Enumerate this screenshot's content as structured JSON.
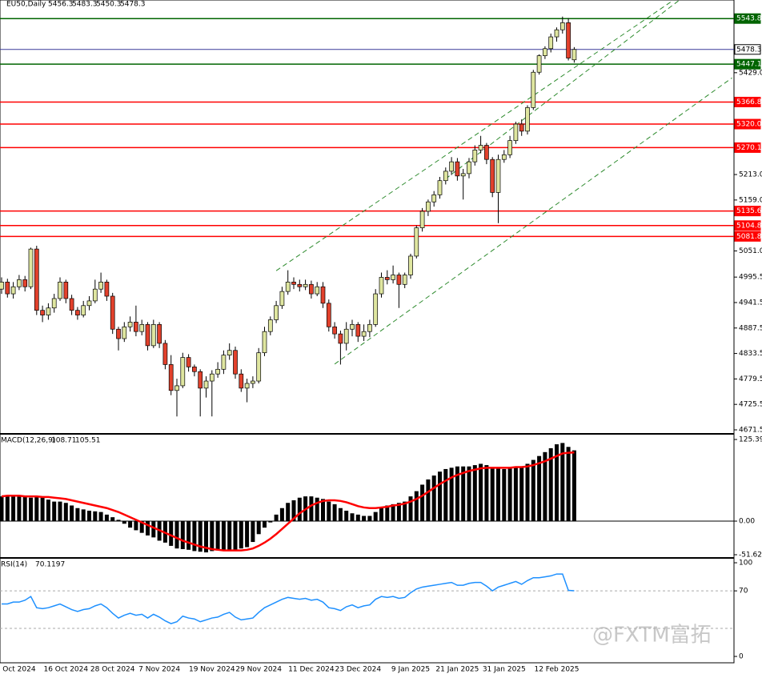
{
  "chart_data": [
    {
      "type": "candlestick",
      "title": "EU50,Daily",
      "up_color": "#dfe6a0",
      "down_color": "#e2412c",
      "categories": [
        null,
        null,
        null,
        "Oct 2024",
        null,
        null,
        null,
        null,
        null,
        null,
        null,
        "16 Oct 2024",
        null,
        null,
        null,
        null,
        null,
        null,
        null,
        "28 Oct 2024",
        null,
        null,
        null,
        null,
        null,
        null,
        null,
        "7 Nov 2024",
        null,
        null,
        null,
        null,
        null,
        null,
        null,
        null,
        "19 Nov 2024",
        null,
        null,
        null,
        null,
        null,
        null,
        null,
        "29 Nov 2024",
        null,
        null,
        null,
        null,
        null,
        null,
        null,
        null,
        "11 Dec 2024",
        null,
        null,
        null,
        null,
        null,
        null,
        null,
        "23 Dec 2024",
        null,
        null,
        null,
        null,
        null,
        null,
        null,
        null,
        "9 Jan 2025",
        null,
        null,
        null,
        null,
        null,
        null,
        null,
        "21 Jan 2025",
        null,
        null,
        null,
        null,
        null,
        null,
        null,
        "31 Jan 2025",
        null,
        null,
        null,
        null,
        null,
        null,
        null,
        null,
        "12 Feb 2025",
        null,
        null,
        null
      ],
      "ohlc": [
        [
          4970,
          4995,
          4960,
          4985
        ],
        [
          4985,
          4992,
          4952,
          4960
        ],
        [
          4960,
          4985,
          4950,
          4975
        ],
        [
          4975,
          5000,
          4968,
          4990
        ],
        [
          4990,
          4998,
          4965,
          4975
        ],
        [
          4975,
          5058,
          4970,
          5055
        ],
        [
          5055,
          5062,
          4915,
          4925
        ],
        [
          4925,
          4935,
          4900,
          4915
        ],
        [
          4915,
          4940,
          4905,
          4930
        ],
        [
          4930,
          4960,
          4920,
          4950
        ],
        [
          4950,
          4995,
          4945,
          4985
        ],
        [
          4985,
          4990,
          4940,
          4950
        ],
        [
          4950,
          4958,
          4915,
          4925
        ],
        [
          4925,
          4932,
          4905,
          4915
        ],
        [
          4915,
          4945,
          4910,
          4935
        ],
        [
          4935,
          4955,
          4925,
          4945
        ],
        [
          4945,
          4990,
          4940,
          4970
        ],
        [
          4970,
          5005,
          4962,
          4985
        ],
        [
          4985,
          4990,
          4945,
          4955
        ],
        [
          4955,
          4962,
          4875,
          4885
        ],
        [
          4885,
          4890,
          4840,
          4865
        ],
        [
          4865,
          4900,
          4858,
          4890
        ],
        [
          4890,
          4912,
          4880,
          4900
        ],
        [
          4900,
          4935,
          4870,
          4880
        ],
        [
          4880,
          4905,
          4872,
          4895
        ],
        [
          4895,
          4900,
          4840,
          4850
        ],
        [
          4850,
          4905,
          4845,
          4895
        ],
        [
          4895,
          4900,
          4845,
          4855
        ],
        [
          4855,
          4862,
          4800,
          4810
        ],
        [
          4810,
          4830,
          4745,
          4755
        ],
        [
          4755,
          4780,
          4700,
          4765
        ],
        [
          4765,
          4835,
          4760,
          4825
        ],
        [
          4825,
          4832,
          4795,
          4805
        ],
        [
          4805,
          4810,
          4785,
          4795
        ],
        [
          4795,
          4800,
          4700,
          4760
        ],
        [
          4760,
          4785,
          4740,
          4775
        ],
        [
          4775,
          4798,
          4700,
          4790
        ],
        [
          4790,
          4815,
          4782,
          4800
        ],
        [
          4800,
          4840,
          4790,
          4830
        ],
        [
          4830,
          4855,
          4820,
          4840
        ],
        [
          4840,
          4848,
          4780,
          4790
        ],
        [
          4790,
          4800,
          4752,
          4760
        ],
        [
          4760,
          4780,
          4730,
          4770
        ],
        [
          4770,
          4785,
          4760,
          4775
        ],
        [
          4775,
          4845,
          4770,
          4835
        ],
        [
          4835,
          4890,
          4828,
          4880
        ],
        [
          4880,
          4912,
          4872,
          4905
        ],
        [
          4905,
          4945,
          4898,
          4935
        ],
        [
          4935,
          4975,
          4928,
          4965
        ],
        [
          4965,
          5010,
          4958,
          4985
        ],
        [
          4985,
          4995,
          4970,
          4980
        ],
        [
          4980,
          4990,
          4965,
          4975
        ],
        [
          4975,
          4990,
          4968,
          4980
        ],
        [
          4980,
          4988,
          4950,
          4960
        ],
        [
          4960,
          4985,
          4955,
          4975
        ],
        [
          4975,
          4985,
          4930,
          4940
        ],
        [
          4940,
          4948,
          4880,
          4890
        ],
        [
          4890,
          4900,
          4865,
          4875
        ],
        [
          4875,
          4882,
          4810,
          4855
        ],
        [
          4855,
          4900,
          4840,
          4885
        ],
        [
          4885,
          4905,
          4870,
          4895
        ],
        [
          4895,
          4900,
          4858,
          4870
        ],
        [
          4870,
          4895,
          4860,
          4880
        ],
        [
          4880,
          4905,
          4868,
          4895
        ],
        [
          4895,
          4970,
          4890,
          4960
        ],
        [
          4960,
          5005,
          4952,
          4995
        ],
        [
          4995,
          5010,
          4980,
          4990
        ],
        [
          4990,
          5020,
          4982,
          5000
        ],
        [
          5000,
          5005,
          4930,
          4980
        ],
        [
          4980,
          5005,
          4972,
          5000
        ],
        [
          5000,
          5045,
          4992,
          5040
        ],
        [
          5040,
          5105,
          5035,
          5100
        ],
        [
          5100,
          5142,
          5092,
          5135
        ],
        [
          5135,
          5160,
          5125,
          5155
        ],
        [
          5155,
          5178,
          5145,
          5170
        ],
        [
          5170,
          5208,
          5162,
          5200
        ],
        [
          5200,
          5228,
          5192,
          5220
        ],
        [
          5220,
          5250,
          5212,
          5240
        ],
        [
          5240,
          5248,
          5200,
          5210
        ],
        [
          5210,
          5225,
          5160,
          5215
        ],
        [
          5215,
          5248,
          5205,
          5240
        ],
        [
          5240,
          5275,
          5232,
          5265
        ],
        [
          5265,
          5295,
          5258,
          5275
        ],
        [
          5275,
          5280,
          5235,
          5245
        ],
        [
          5245,
          5250,
          5165,
          5175
        ],
        [
          5175,
          5255,
          5110,
          5245
        ],
        [
          5245,
          5265,
          5238,
          5255
        ],
        [
          5255,
          5295,
          5248,
          5285
        ],
        [
          5285,
          5325,
          5278,
          5320
        ],
        [
          5320,
          5330,
          5295,
          5305
        ],
        [
          5305,
          5360,
          5298,
          5355
        ],
        [
          5355,
          5435,
          5350,
          5430
        ],
        [
          5430,
          5468,
          5425,
          5465
        ],
        [
          5465,
          5485,
          5458,
          5480
        ],
        [
          5480,
          5512,
          5472,
          5505
        ],
        [
          5505,
          5525,
          5495,
          5520
        ],
        [
          5520,
          5548,
          5512,
          5535
        ],
        [
          5535,
          5545,
          5455,
          5460
        ],
        [
          5456.3,
          5483.3,
          5450.3,
          5478.3
        ]
      ],
      "ylim": [
        4664.7,
        5583.2
      ],
      "yticks": [
        {
          "value": 4671.5,
          "label": "4671.5"
        },
        {
          "value": 4725.5,
          "label": "4725.5"
        },
        {
          "value": 4779.5,
          "label": "4779.5"
        },
        {
          "value": 4833.5,
          "label": "4833.5"
        },
        {
          "value": 4887.5,
          "label": "4887.5"
        },
        {
          "value": 4941.5,
          "label": "4941.5"
        },
        {
          "value": 4995.5,
          "label": "4995.5"
        },
        {
          "value": 5051,
          "label": "5051.0"
        },
        {
          "value": 5159,
          "label": "5159.0"
        },
        {
          "value": 5213,
          "label": "5213.0"
        },
        {
          "value": 5429,
          "label": "5429.0"
        }
      ],
      "levels": [
        {
          "value": 5543.8,
          "color": "#006400"
        },
        {
          "value": 5478.3,
          "color": "#3a3a9a"
        },
        {
          "value": 5447.1,
          "color": "#006400"
        },
        {
          "value": 5366.8,
          "color": "#ff0000"
        },
        {
          "value": 5320,
          "label": "5320.0",
          "color": "#ff0000"
        },
        {
          "value": 5270.1,
          "color": "#ff0000"
        },
        {
          "value": 5135.6,
          "color": "#ff0000"
        },
        {
          "value": 5104.8,
          "color": "#ff0000"
        },
        {
          "value": 5081.8,
          "color": "#ff0000"
        }
      ],
      "trendlines": [
        [
          [
            47,
            5009
          ],
          [
            115,
            5583
          ]
        ],
        [
          [
            57,
            4811
          ],
          [
            125,
            5418
          ]
        ],
        [
          [
            76,
            5204
          ],
          [
            116,
            5583
          ]
        ]
      ],
      "trend_color": "#2e8b2e"
    },
    {
      "type": "macd",
      "title": "MACD(12,26,9)",
      "histogram": {
        "color": "#000000",
        "values": [
          38,
          40,
          39,
          38,
          37,
          36,
          38,
          36,
          33,
          30,
          30,
          28,
          24,
          20,
          18,
          16,
          15,
          14,
          10,
          6,
          2,
          -4,
          -10,
          -14,
          -18,
          -22,
          -25,
          -30,
          -33,
          -38,
          -42,
          -43,
          -44,
          -46,
          -47,
          -48,
          -46,
          -45,
          -45,
          -44,
          -44,
          -42,
          -40,
          -32,
          -20,
          -10,
          -2,
          10,
          20,
          28,
          32,
          36,
          38,
          38,
          36,
          34,
          30,
          26,
          20,
          16,
          12,
          10,
          8,
          8,
          14,
          20,
          24,
          26,
          28,
          30,
          38,
          46,
          56,
          64,
          70,
          76,
          80,
          82,
          84,
          84,
          84,
          86,
          88,
          86,
          82,
          82,
          80,
          82,
          84,
          84,
          88,
          94,
          100,
          106,
          112,
          118,
          120,
          114,
          108.71
        ]
      },
      "signal": {
        "color": "#ff0000",
        "values": [
          38,
          39,
          39,
          39,
          38,
          38,
          38,
          37,
          37,
          36,
          35,
          34,
          32,
          30,
          28,
          26,
          24,
          22,
          20,
          17,
          14,
          10,
          6,
          2,
          -2,
          -6,
          -10,
          -14,
          -18,
          -22,
          -26,
          -30,
          -33,
          -36,
          -39,
          -41,
          -43,
          -44,
          -45,
          -45,
          -45,
          -45,
          -44,
          -42,
          -38,
          -33,
          -27,
          -20,
          -12,
          -4,
          4,
          12,
          18,
          24,
          28,
          31,
          32,
          32,
          31,
          29,
          26,
          23,
          21,
          20,
          20,
          21,
          22,
          24,
          25,
          27,
          30,
          34,
          39,
          45,
          51,
          57,
          62,
          67,
          71,
          74,
          77,
          79,
          81,
          82,
          82,
          82,
          82,
          82,
          83,
          83,
          84,
          86,
          89,
          92,
          96,
          100,
          104,
          105,
          105.51
        ]
      },
      "ylim": [
        -55.3,
        132.8
      ],
      "yticks": [
        125.39,
        {
          "value": 0,
          "label": "0.00"
        },
        -51.62
      ]
    },
    {
      "type": "line",
      "title": "RSI(14)",
      "color": "#1e90ff",
      "values": [
        56,
        56,
        58,
        58,
        60,
        64,
        52,
        51,
        52,
        54,
        56,
        53,
        50,
        48,
        50,
        51,
        54,
        56,
        52,
        46,
        41,
        44,
        46,
        44,
        45,
        41,
        45,
        42,
        38,
        35,
        37,
        43,
        41,
        40,
        37,
        39,
        41,
        42,
        45,
        47,
        42,
        39,
        40,
        41,
        47,
        52,
        55,
        58,
        61,
        63,
        62,
        61,
        62,
        60,
        61,
        58,
        52,
        51,
        49,
        53,
        55,
        52,
        54,
        55,
        61,
        64,
        63,
        64,
        62,
        63,
        68,
        72,
        74,
        75,
        76,
        77,
        78,
        79,
        76,
        76,
        78,
        79,
        79,
        75,
        70,
        74,
        76,
        78,
        80,
        77,
        81,
        84,
        84,
        85,
        86,
        88,
        88,
        70.5,
        70.1197
      ],
      "ylim": [
        -6.8,
        104.3
      ],
      "yticks": [
        100,
        70,
        0
      ],
      "levels": [
        70,
        30
      ]
    }
  ],
  "watermark": "@FXTM富拓"
}
